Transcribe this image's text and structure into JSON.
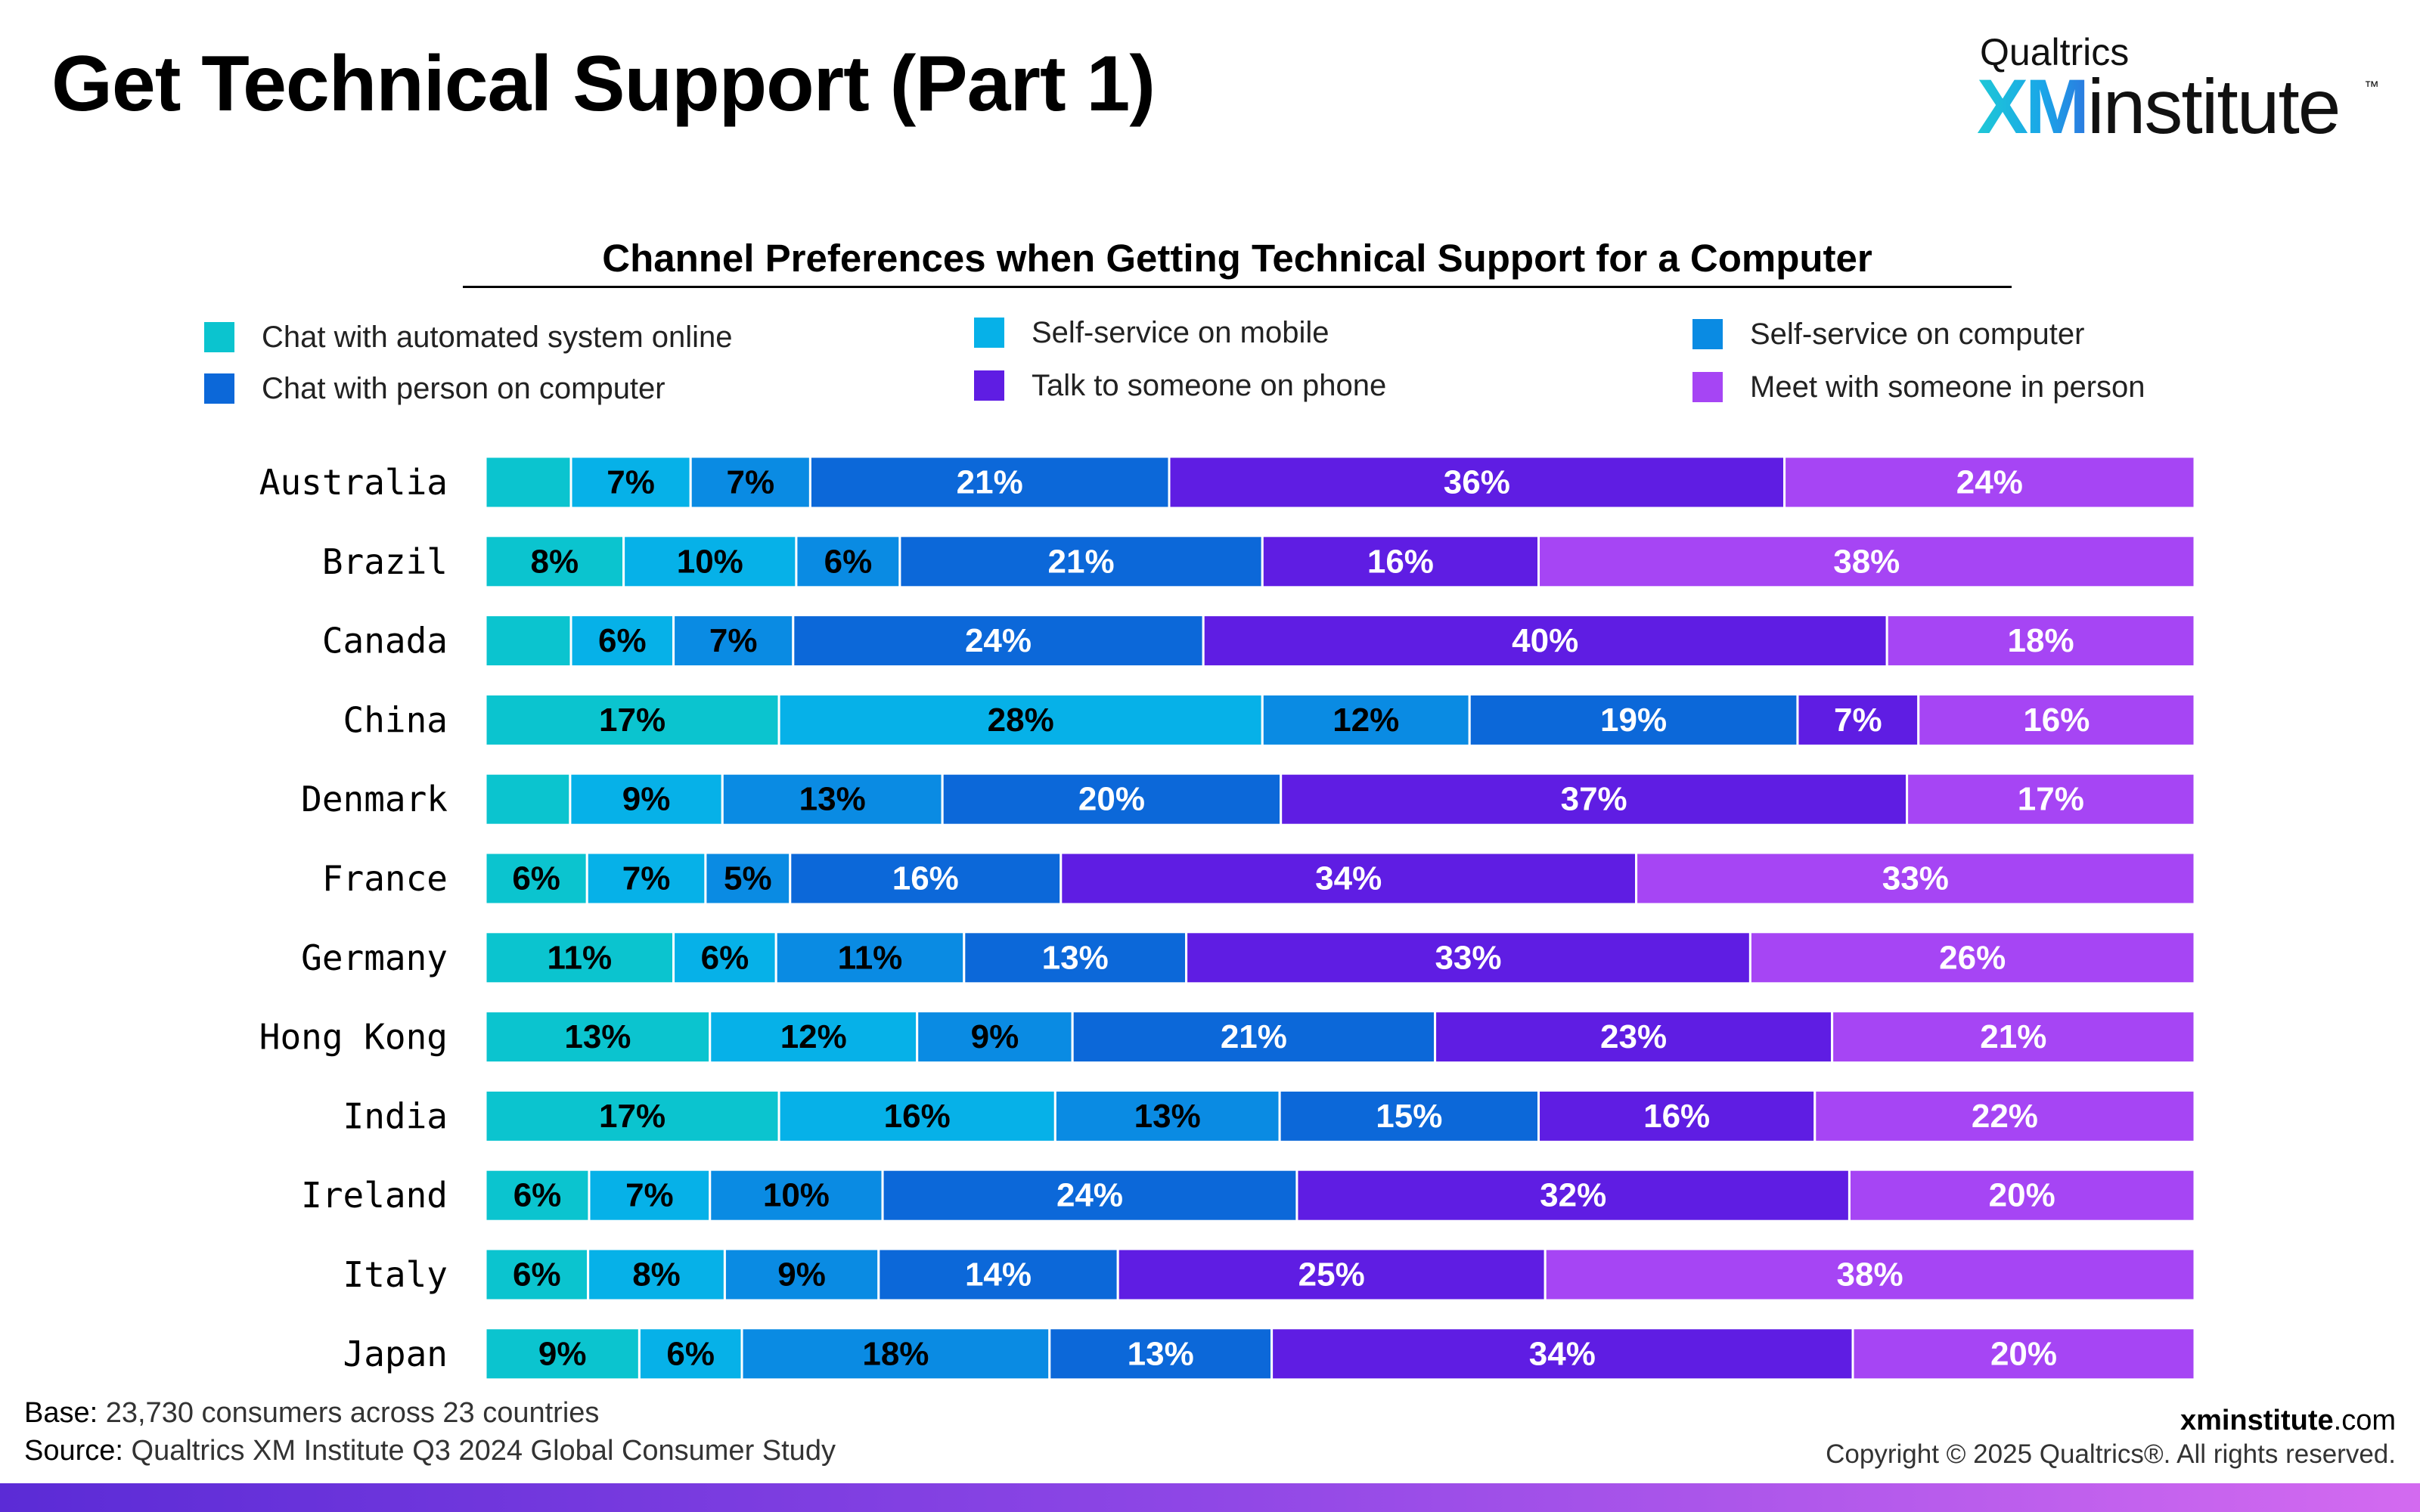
{
  "page": {
    "title": "Get Technical Support (Part 1)"
  },
  "logo": {
    "brand": "Qualtrics",
    "xm": "XM",
    "word": "institute",
    "tm": "™"
  },
  "chart_data": {
    "type": "bar",
    "orientation": "horizontal",
    "stacked": true,
    "title": "Channel Preferences when Getting Technical Support for a Computer",
    "xlim": [
      0,
      100
    ],
    "grid": false,
    "legend_position": "top",
    "categories": [
      "Australia",
      "Brazil",
      "Canada",
      "China",
      "Denmark",
      "France",
      "Germany",
      "Hong Kong",
      "India",
      "Ireland",
      "Italy",
      "Japan"
    ],
    "series": [
      {
        "name": "Chat with automated system online",
        "color": "#0bc4cf",
        "values": [
          5,
          8,
          5,
          17,
          5,
          6,
          11,
          13,
          17,
          6,
          6,
          9
        ]
      },
      {
        "name": "Self-service on mobile",
        "color": "#06b1e8",
        "values": [
          7,
          10,
          6,
          28,
          9,
          7,
          6,
          12,
          16,
          7,
          8,
          6
        ]
      },
      {
        "name": "Self-service on computer",
        "color": "#0a8be3",
        "values": [
          7,
          6,
          7,
          12,
          13,
          5,
          11,
          9,
          13,
          10,
          9,
          18
        ]
      },
      {
        "name": "Chat with person on computer",
        "color": "#0c68d9",
        "values": [
          21,
          21,
          24,
          19,
          20,
          16,
          13,
          21,
          15,
          24,
          14,
          13
        ]
      },
      {
        "name": "Talk to someone on phone",
        "color": "#5f1de3",
        "values": [
          36,
          16,
          40,
          7,
          37,
          34,
          33,
          23,
          16,
          32,
          25,
          34
        ]
      },
      {
        "name": "Meet with someone in person",
        "color": "#a645f4",
        "values": [
          24,
          38,
          18,
          16,
          17,
          33,
          26,
          21,
          22,
          20,
          38,
          20
        ]
      }
    ],
    "labels": [
      [
        "",
        "7%",
        "7%",
        "21%",
        "36%",
        "24%"
      ],
      [
        "8%",
        "10%",
        "6%",
        "21%",
        "16%",
        "38%"
      ],
      [
        "",
        "6%",
        "7%",
        "24%",
        "40%",
        "18%"
      ],
      [
        "17%",
        "28%",
        "12%",
        "19%",
        "7%",
        "16%"
      ],
      [
        "",
        "9%",
        "13%",
        "20%",
        "37%",
        "17%"
      ],
      [
        "6%",
        "7%",
        "5%",
        "16%",
        "34%",
        "33%"
      ],
      [
        "11%",
        "6%",
        "11%",
        "13%",
        "33%",
        "26%"
      ],
      [
        "13%",
        "12%",
        "9%",
        "21%",
        "23%",
        "21%"
      ],
      [
        "17%",
        "16%",
        "13%",
        "15%",
        "16%",
        "22%"
      ],
      [
        "6%",
        "7%",
        "10%",
        "24%",
        "32%",
        "20%"
      ],
      [
        "6%",
        "8%",
        "9%",
        "14%",
        "25%",
        "38%"
      ],
      [
        "9%",
        "6%",
        "18%",
        "13%",
        "34%",
        "20%"
      ]
    ],
    "label_colors": [
      "#000000",
      "#000000",
      "#000000",
      "#ffffff",
      "#ffffff",
      "#ffffff"
    ]
  },
  "footer": {
    "base_label": "Base:",
    "base_text": " 23,730 consumers across 23 countries",
    "source_label": "Source:",
    "source_text": " Qualtrics XM Institute Q3 2024 Global Consumer Study",
    "url_domain": "xminstitute",
    "url_tld": ".com",
    "copyright": "Copyright © 2025 Qualtrics®. All rights reserved."
  }
}
